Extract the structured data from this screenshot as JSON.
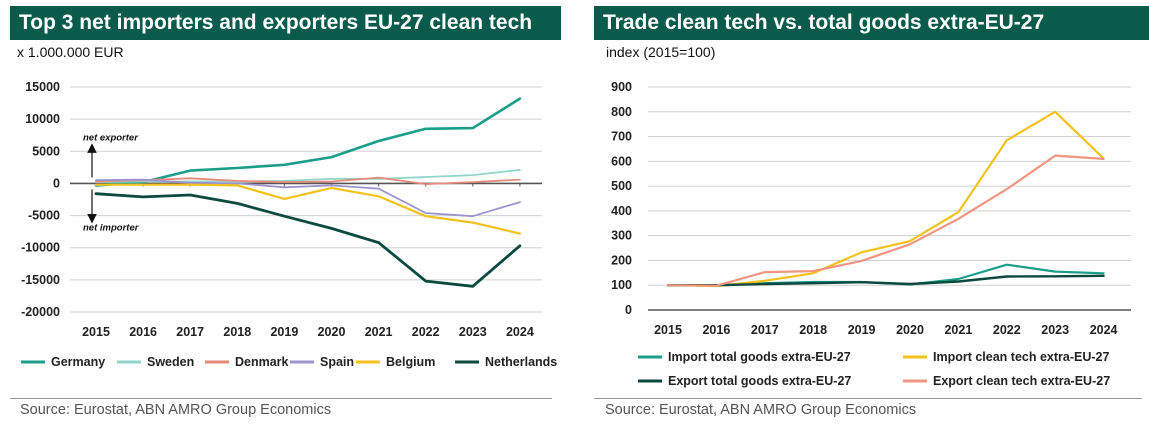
{
  "panels": {
    "left": {
      "title": "Top 3 net importers and exporters EU-27 clean tech",
      "unit": "x 1.000.000 EUR",
      "source": "Source: Eurostat, ABN AMRO Group Economics",
      "annotations": {
        "top": "net exporter",
        "bottom": "net importer"
      }
    },
    "right": {
      "title": "Trade clean tech vs. total goods extra-EU-27",
      "unit": "index (2015=100)",
      "source": "Source: Eurostat, ABN AMRO Group Economics"
    }
  },
  "chart_data": [
    {
      "type": "line",
      "title": "Top 3 net importers and exporters EU-27 clean tech",
      "ylabel": "x 1.000.000 EUR",
      "x": [
        "2015",
        "2016",
        "2017",
        "2018",
        "2019",
        "2020",
        "2021",
        "2022",
        "2023",
        "2024"
      ],
      "ylim": [
        -20000,
        15000
      ],
      "yticks": [
        15000,
        10000,
        5000,
        0,
        -5000,
        -10000,
        -15000,
        -20000
      ],
      "grid": true,
      "legend_position": "bottom",
      "series": [
        {
          "name": "Germany",
          "color": "#1a9e8a",
          "width": 2.6,
          "values": [
            -300,
            200,
            2000,
            2400,
            2900,
            4100,
            6600,
            8500,
            8600,
            13200
          ]
        },
        {
          "name": "Sweden",
          "color": "#8fd5c9",
          "width": 1.8,
          "values": [
            200,
            300,
            300,
            300,
            400,
            700,
            700,
            1000,
            1300,
            2100
          ]
        },
        {
          "name": "Denmark",
          "color": "#e9897a",
          "width": 1.8,
          "values": [
            300,
            500,
            800,
            400,
            200,
            300,
            900,
            -100,
            200,
            600
          ]
        },
        {
          "name": "Spain",
          "color": "#9d93ce",
          "width": 1.8,
          "values": [
            500,
            600,
            100,
            0,
            -600,
            -300,
            -800,
            -4600,
            -5100,
            -2900
          ]
        },
        {
          "name": "Belgium",
          "color": "#f4c21b",
          "width": 2.2,
          "values": [
            -200,
            -200,
            -200,
            -300,
            -2400,
            -700,
            -2000,
            -5100,
            -6100,
            -7800
          ]
        },
        {
          "name": "Netherlands",
          "color": "#0c4a40",
          "width": 2.8,
          "values": [
            -1600,
            -2100,
            -1800,
            -3100,
            -5100,
            -7000,
            -9200,
            -15200,
            -16000,
            -9700
          ]
        }
      ]
    },
    {
      "type": "line",
      "title": "Trade clean tech vs. total goods extra-EU-27",
      "ylabel": "index (2015=100)",
      "x": [
        "2015",
        "2016",
        "2017",
        "2018",
        "2019",
        "2020",
        "2021",
        "2022",
        "2023",
        "2024"
      ],
      "ylim": [
        0,
        900
      ],
      "yticks": [
        900,
        800,
        700,
        600,
        500,
        400,
        300,
        200,
        100,
        0
      ],
      "grid": true,
      "legend_position": "bottom",
      "series": [
        {
          "name": "Import total goods extra-EU-27",
          "color": "#1a9e8a",
          "width": 2.2,
          "values": [
            100,
            98,
            108,
            113,
            113,
            103,
            125,
            183,
            155,
            148
          ]
        },
        {
          "name": "Import clean tech extra-EU-27",
          "color": "#f4c21b",
          "width": 2.2,
          "values": [
            100,
            97,
            118,
            148,
            233,
            278,
            395,
            685,
            800,
            612
          ]
        },
        {
          "name": "Export total goods extra-EU-27",
          "color": "#0c4a40",
          "width": 2.4,
          "values": [
            100,
            100,
            105,
            108,
            112,
            105,
            115,
            135,
            136,
            138
          ]
        },
        {
          "name": "Export clean tech extra-EU-27",
          "color": "#ef9580",
          "width": 2.2,
          "values": [
            100,
            98,
            153,
            157,
            198,
            265,
            368,
            488,
            623,
            610
          ]
        }
      ]
    }
  ]
}
